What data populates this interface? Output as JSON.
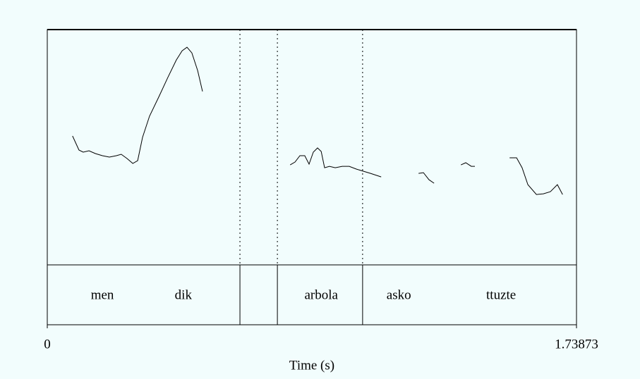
{
  "chart_data": {
    "type": "line",
    "xlabel": "Time (s)",
    "xlim": [
      0,
      1.73873
    ],
    "xticks": [
      0,
      1.73873
    ],
    "ylim": [
      0,
      100
    ],
    "x": [
      0.083,
      0.104,
      0.118,
      0.137,
      0.158,
      0.181,
      0.204,
      0.227,
      0.243,
      0.262,
      0.281,
      0.297,
      0.313,
      0.336,
      0.366,
      0.396,
      0.424,
      0.443,
      0.459,
      0.475,
      0.494,
      0.51,
      null,
      0.798,
      0.814,
      0.83,
      0.846,
      0.86,
      0.874,
      0.888,
      0.9,
      0.911,
      0.927,
      0.946,
      0.969,
      0.992,
      1.016,
      1.039,
      1.062,
      1.097,
      null,
      1.22,
      1.236,
      1.254,
      1.271,
      null,
      1.359,
      1.375,
      1.393,
      1.405,
      null,
      1.519,
      1.542,
      1.56,
      1.579,
      1.607,
      1.63,
      1.653,
      1.676,
      1.693
    ],
    "series": [
      {
        "color": "#000000",
        "values": [
          54.8,
          48.8,
          47.9,
          48.5,
          47.3,
          46.4,
          45.8,
          46.4,
          47.0,
          45.2,
          43.1,
          44.3,
          54.2,
          63.2,
          71.3,
          79.6,
          87.1,
          91.0,
          92.5,
          90.1,
          82.6,
          73.7,
          null,
          42.5,
          43.7,
          46.4,
          46.4,
          42.8,
          47.9,
          49.7,
          48.2,
          41.3,
          41.9,
          41.3,
          41.9,
          41.9,
          40.7,
          39.8,
          38.9,
          37.4,
          null,
          38.9,
          39.2,
          36.2,
          34.7,
          null,
          42.5,
          43.4,
          41.9,
          41.9,
          null,
          45.5,
          45.5,
          41.3,
          34.1,
          29.9,
          30.2,
          31.1,
          34.1,
          29.9
        ]
      }
    ],
    "tier": {
      "boundaries": [
        0.633,
        0.756,
        1.036
      ],
      "labels": [
        {
          "text": "men",
          "time": 0.181
        },
        {
          "text": "dik",
          "time": 0.447
        },
        {
          "text": "arbola",
          "time": 0.9
        },
        {
          "text": "asko",
          "time": 1.155
        },
        {
          "text": "ttuzte",
          "time": 1.491
        }
      ]
    }
  }
}
